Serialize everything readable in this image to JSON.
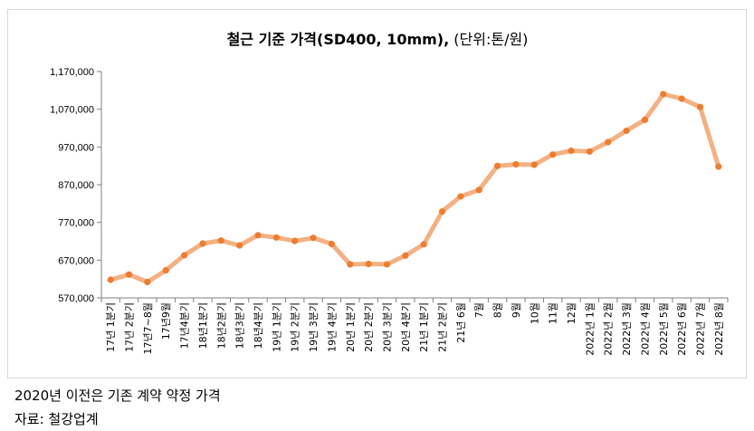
{
  "chart_data": {
    "type": "line",
    "title_bold": "철근 기준 가격(SD400, 10mm),",
    "title_normal": " (단위:톤/원)",
    "series": [
      {
        "name": "철근 기준 가격",
        "color": "#f4b183",
        "marker_color": "#ed7d31",
        "values": [
          618000,
          632000,
          612000,
          643000,
          683000,
          714000,
          722000,
          709000,
          736000,
          730000,
          721000,
          729000,
          713000,
          659000,
          660000,
          659000,
          682000,
          712000,
          799000,
          839000,
          856000,
          920000,
          924000,
          923000,
          950000,
          960000,
          958000,
          983000,
          1013000,
          1042000,
          1110000,
          1098000,
          1076000,
          918000
        ]
      }
    ],
    "categories": [
      "17년 1분기",
      "17년 2분기",
      "17년7~8월",
      "17년9월",
      "17년4분기",
      "18년1분기",
      "18년2분기",
      "18년3분기",
      "18년4분기",
      "19년 1분기",
      "19년 2분기",
      "19년 3분기",
      "19년 4분기",
      "20년 1분기",
      "20년 2분기",
      "20년 3분기",
      "20년 4분기",
      "21년 1분기",
      "21년 2분기",
      "21년 6월",
      "7월",
      "8월",
      "9월",
      "10월",
      "11월",
      "12월",
      "2022년 1월",
      "2022년 2월",
      "2022년 3월",
      "2022년 4월",
      "2022년 5월",
      "2022년 6월",
      "2022년 7월",
      "2022년 8월"
    ],
    "ylim": [
      570000,
      1170000
    ],
    "yticks": [
      570000,
      670000,
      770000,
      870000,
      970000,
      1070000,
      1170000
    ],
    "ytick_labels": [
      "570,000",
      "670,000",
      "770,000",
      "870,000",
      "970,000",
      "1,070,000",
      "1,170,000"
    ],
    "xlabel": "",
    "ylabel": "",
    "grid": false,
    "legend": "none"
  },
  "notes": {
    "line1": "2020년 이전은 기존 계약 약정 가격",
    "line2": "자료: 철강업계"
  }
}
